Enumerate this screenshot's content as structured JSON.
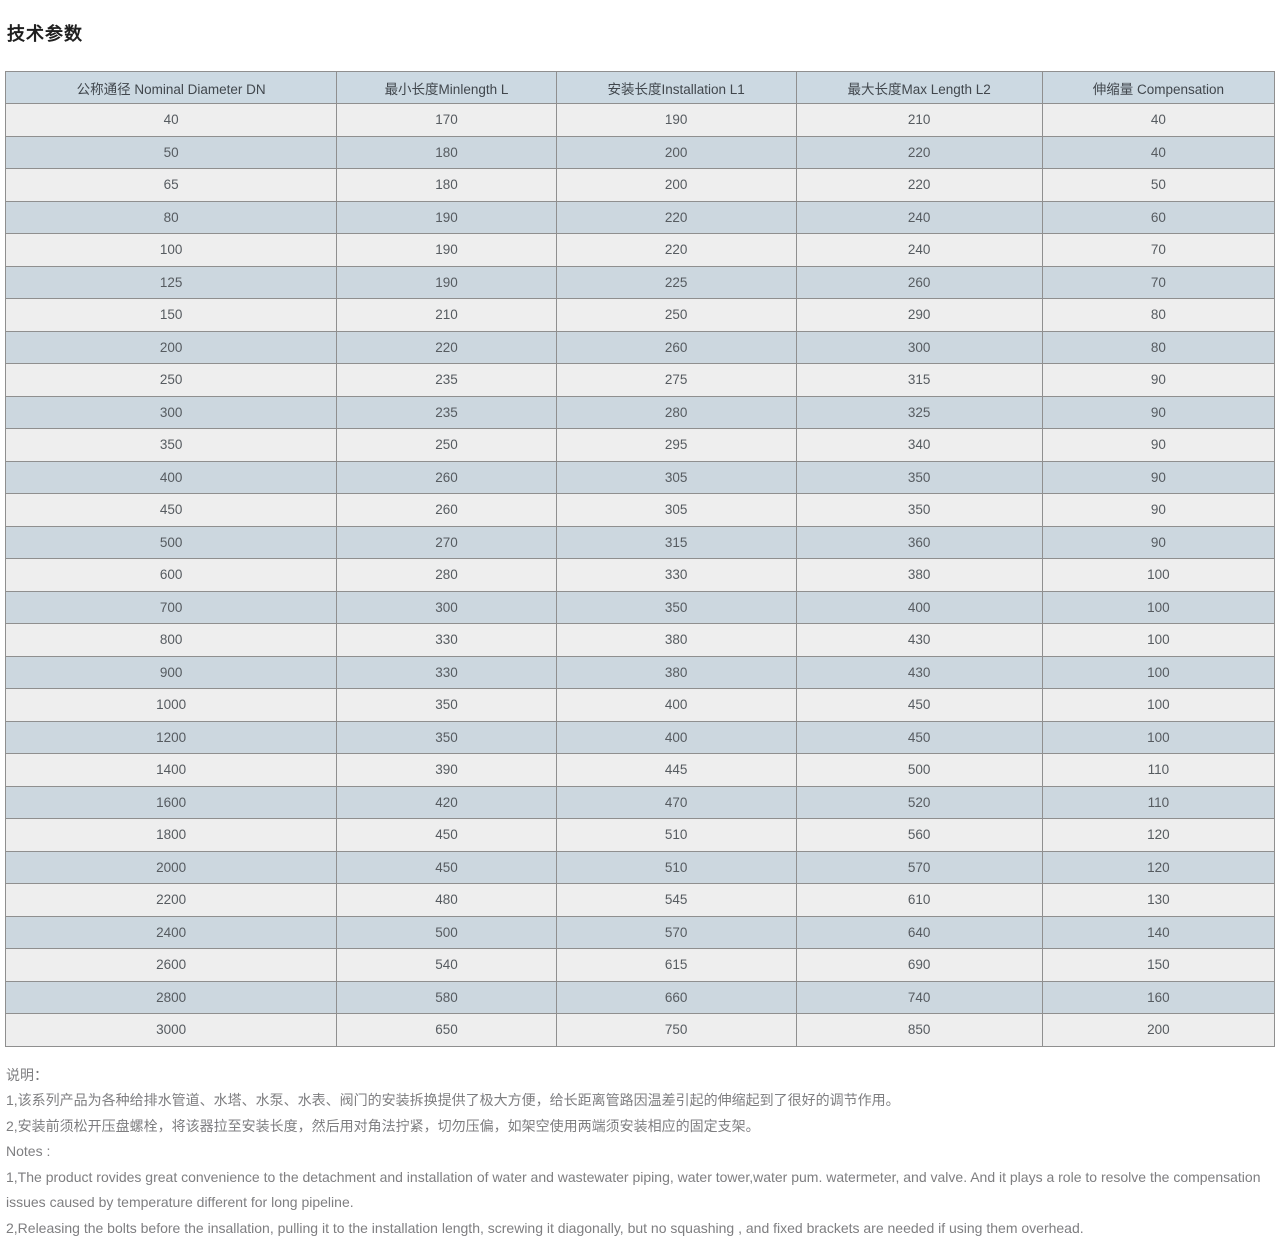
{
  "page": {
    "title": "技术参数"
  },
  "table": {
    "headers": [
      "公称通径 Nominal Diameter DN",
      "最小长度Minlength L",
      "安装长度Installation L1",
      "最大长度Max Length L2",
      "伸缩量 Compensation"
    ],
    "rows": [
      [
        "40",
        "170",
        "190",
        "210",
        "40"
      ],
      [
        "50",
        "180",
        "200",
        "220",
        "40"
      ],
      [
        "65",
        "180",
        "200",
        "220",
        "50"
      ],
      [
        "80",
        "190",
        "220",
        "240",
        "60"
      ],
      [
        "100",
        "190",
        "220",
        "240",
        "70"
      ],
      [
        "125",
        "190",
        "225",
        "260",
        "70"
      ],
      [
        "150",
        "210",
        "250",
        "290",
        "80"
      ],
      [
        "200",
        "220",
        "260",
        "300",
        "80"
      ],
      [
        "250",
        "235",
        "275",
        "315",
        "90"
      ],
      [
        "300",
        "235",
        "280",
        "325",
        "90"
      ],
      [
        "350",
        "250",
        "295",
        "340",
        "90"
      ],
      [
        "400",
        "260",
        "305",
        "350",
        "90"
      ],
      [
        "450",
        "260",
        "305",
        "350",
        "90"
      ],
      [
        "500",
        "270",
        "315",
        "360",
        "90"
      ],
      [
        "600",
        "280",
        "330",
        "380",
        "100"
      ],
      [
        "700",
        "300",
        "350",
        "400",
        "100"
      ],
      [
        "800",
        "330",
        "380",
        "430",
        "100"
      ],
      [
        "900",
        "330",
        "380",
        "430",
        "100"
      ],
      [
        "1000",
        "350",
        "400",
        "450",
        "100"
      ],
      [
        "1200",
        "350",
        "400",
        "450",
        "100"
      ],
      [
        "1400",
        "390",
        "445",
        "500",
        "110"
      ],
      [
        "1600",
        "420",
        "470",
        "520",
        "110"
      ],
      [
        "1800",
        "450",
        "510",
        "560",
        "120"
      ],
      [
        "2000",
        "450",
        "510",
        "570",
        "120"
      ],
      [
        "2200",
        "480",
        "545",
        "610",
        "130"
      ],
      [
        "2400",
        "500",
        "570",
        "640",
        "140"
      ],
      [
        "2600",
        "540",
        "615",
        "690",
        "150"
      ],
      [
        "2800",
        "580",
        "660",
        "740",
        "160"
      ],
      [
        "3000",
        "650",
        "750",
        "850",
        "200"
      ]
    ]
  },
  "notes": {
    "cn_label": "说明：",
    "cn_items": [
      "1,该系列产品为各种给排水管道、水塔、水泵、水表、阀门的安装拆换提供了极大方便，给长距离管路因温差引起的伸缩起到了很好的调节作用。",
      "2,安装前须松开压盘螺栓，将该器拉至安装长度，然后用对角法拧紧，切勿压偏，如架空使用两端须安装相应的固定支架。"
    ],
    "en_label": "Notes :",
    "en_items": [
      "1,The product rovides great convenience to the detachment and installation of water and wastewater piping, water tower,water pum. watermeter, and valve. And it plays a role to resolve the compensation issues caused by temperature different for long pipeline.",
      "2,Releasing the bolts before the insallation, pulling it to the installation length, screwing it diagonally, but no squashing , and fixed brackets are needed if using them overhead."
    ]
  },
  "colors": {
    "header_bg": "#ccd9e2",
    "row_light_bg": "#eeeeee",
    "row_blue_bg": "#ccd7df",
    "border": "#8f8f8f",
    "cell_text": "#565b60",
    "notes_text": "#7e7e80",
    "title_text": "#1f1f1f"
  }
}
